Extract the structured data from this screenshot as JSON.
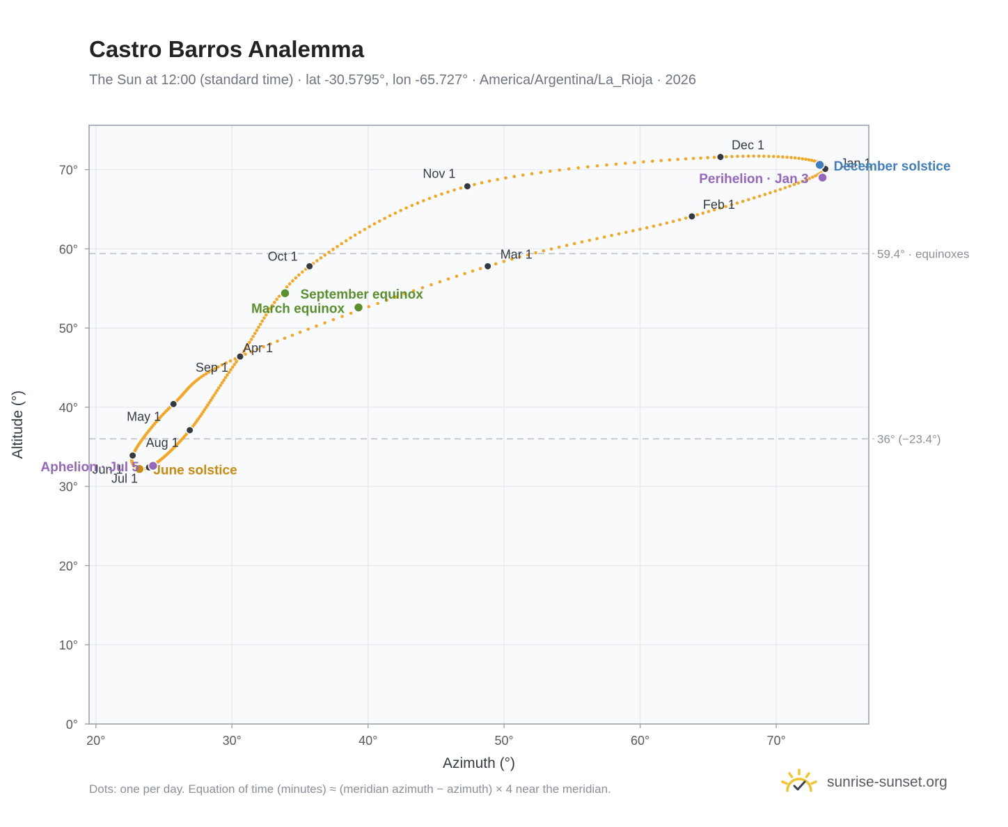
{
  "title": "Castro Barros Analemma",
  "subtitle": "The Sun at 12:00 (standard time) · lat -30.5795°, lon -65.727° · America/Argentina/La_Rioja · 2026",
  "footnote": "Dots: one per day. Equation of time (minutes) ≈ (meridian azimuth − azimuth) × 4 near the meridian.",
  "brand": {
    "name": "sunrise-sunset.org",
    "icon": "sun-logo-icon"
  },
  "colors": {
    "curve": "#f5a623",
    "month_marker": "#333a42",
    "equinox": "#5a8f2e",
    "june_solstice": "#c98a10",
    "december_solstice": "#3f7fbf",
    "apsis": "#9467bd",
    "reference_line": "#bcc2c9",
    "plot_background": "#f8fafc",
    "grid": "#e4e8ed"
  },
  "chart_data": {
    "type": "scatter",
    "xlabel": "Azimuth (°)",
    "ylabel": "Altitude (°)",
    "xlim": [
      19.5,
      76.8
    ],
    "ylim": [
      0,
      75.6
    ],
    "xticks": [
      20,
      30,
      40,
      50,
      60,
      70
    ],
    "yticks": [
      0,
      10,
      20,
      30,
      40,
      50,
      60,
      70
    ],
    "tick_suffix": "°",
    "grid": true,
    "reference_lines": [
      {
        "y": 59.4,
        "label": "59.4° · equinoxes"
      },
      {
        "y": 36.0,
        "label": "36° (−23.4°)"
      }
    ],
    "month_markers": [
      {
        "label": "Jan 1",
        "azimuth": 73.6,
        "altitude": 70.1
      },
      {
        "label": "Feb 1",
        "azimuth": 63.8,
        "altitude": 64.1
      },
      {
        "label": "Mar 1",
        "azimuth": 48.8,
        "altitude": 57.8
      },
      {
        "label": "Apr 1",
        "azimuth": 30.6,
        "altitude": 46.4
      },
      {
        "label": "May 1",
        "azimuth": 25.7,
        "altitude": 40.4
      },
      {
        "label": "Jun 1",
        "azimuth": 22.7,
        "altitude": 33.9
      },
      {
        "label": "Jul 1",
        "azimuth": 23.9,
        "altitude": 32.4
      },
      {
        "label": "Aug 1",
        "azimuth": 26.9,
        "altitude": 37.1
      },
      {
        "label": "Sep 1",
        "azimuth": 30.6,
        "altitude": 46.4
      },
      {
        "label": "Oct 1",
        "azimuth": 35.7,
        "altitude": 57.8
      },
      {
        "label": "Nov 1",
        "azimuth": 47.3,
        "altitude": 67.9
      },
      {
        "label": "Dec 1",
        "azimuth": 65.9,
        "altitude": 71.6
      }
    ],
    "events": [
      {
        "label": "March equinox",
        "azimuth": 39.3,
        "altitude": 52.6,
        "kind": "equinox"
      },
      {
        "label": "September equinox",
        "azimuth": 33.9,
        "altitude": 54.4,
        "kind": "equinox"
      },
      {
        "label": "June solstice",
        "azimuth": 23.2,
        "altitude": 32.2,
        "kind": "june_solstice"
      },
      {
        "label": "December solstice",
        "azimuth": 73.2,
        "altitude": 70.6,
        "kind": "december_solstice"
      },
      {
        "label": "Perihelion · Jan 3",
        "azimuth": 73.4,
        "altitude": 69.0,
        "kind": "apsis"
      },
      {
        "label": "Aphelion · Jul 5",
        "azimuth": 24.2,
        "altitude": 32.6,
        "kind": "apsis"
      }
    ],
    "daily_dots": "one per day, 365 points along the figure-eight through the month markers"
  }
}
